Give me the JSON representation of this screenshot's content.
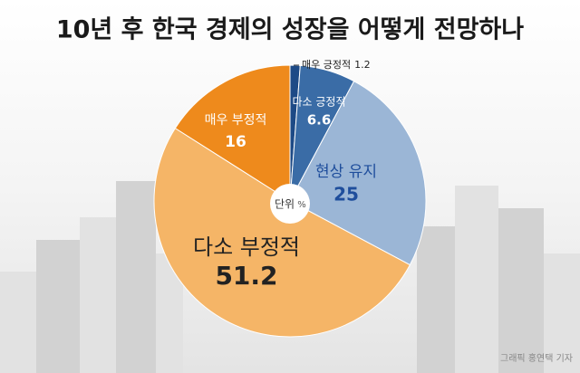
{
  "chart_data": {
    "type": "pie",
    "title": "10년 후 한국 경제의 성장을 어떻게 전망하나",
    "categories": [
      "매우 긍정적",
      "다소 긍정적",
      "현상 유지",
      "다소 부정적",
      "매우 부정적"
    ],
    "values": [
      1.2,
      6.6,
      25,
      51.2,
      16
    ],
    "colors": [
      "#1d4a86",
      "#3a6ca6",
      "#9bb6d6",
      "#f5b567",
      "#ee8a1c"
    ],
    "unit_label": "단위",
    "unit": "%",
    "credit": "그래픽 홍연택 기자"
  }
}
